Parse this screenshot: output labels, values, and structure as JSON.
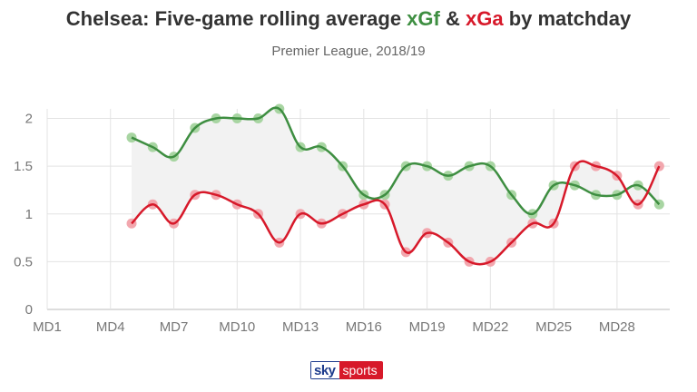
{
  "title": {
    "prefix": "Chelsea: Five-game rolling average ",
    "xgf": "xGf",
    "amp": " & ",
    "xga": "xGa",
    "suffix": " by matchday"
  },
  "subtitle": "Premier League, 2018/19",
  "logo": {
    "sky": "sky",
    "sports": "sports"
  },
  "colors": {
    "xgf": "#3e8e41",
    "xgf_marker": "#a8d5a2",
    "xga": "#d7192a",
    "xga_marker": "#f2a7ae",
    "fill": "#f2f2f2",
    "grid": "#e3e3e3"
  },
  "chart_data": {
    "type": "line",
    "title": "Chelsea: Five-game rolling average xGf & xGa by matchday",
    "subtitle": "Premier League, 2018/19",
    "x_ticks": [
      "MD1",
      "MD4",
      "MD7",
      "MD10",
      "MD13",
      "MD16",
      "MD19",
      "MD22",
      "MD25",
      "MD28"
    ],
    "x_tick_positions": [
      1,
      4,
      7,
      10,
      13,
      16,
      19,
      22,
      25,
      28
    ],
    "xlim": [
      1,
      30.5
    ],
    "ylim": [
      0,
      2.1
    ],
    "y_ticks": [
      0,
      0.5,
      1,
      1.5,
      2
    ],
    "y_tick_labels": [
      "0",
      "0.5",
      "1",
      "1.5",
      "2"
    ],
    "grid": true,
    "x": [
      5,
      6,
      7,
      8,
      9,
      10,
      11,
      12,
      13,
      14,
      15,
      16,
      17,
      18,
      19,
      20,
      21,
      22,
      23,
      24,
      25,
      26,
      27,
      28,
      29,
      30
    ],
    "series": [
      {
        "name": "xGf",
        "values": [
          1.8,
          1.7,
          1.6,
          1.9,
          2.0,
          2.0,
          2.0,
          2.1,
          1.7,
          1.7,
          1.5,
          1.2,
          1.2,
          1.5,
          1.5,
          1.4,
          1.5,
          1.5,
          1.2,
          1.0,
          1.3,
          1.3,
          1.2,
          1.2,
          1.3,
          1.1
        ]
      },
      {
        "name": "xGa",
        "values": [
          0.9,
          1.1,
          0.9,
          1.2,
          1.2,
          1.1,
          1.0,
          0.7,
          1.0,
          0.9,
          1.0,
          1.1,
          1.1,
          0.6,
          0.8,
          0.7,
          0.5,
          0.5,
          0.7,
          0.9,
          0.9,
          1.5,
          1.5,
          1.4,
          1.1,
          1.5
        ]
      }
    ]
  }
}
